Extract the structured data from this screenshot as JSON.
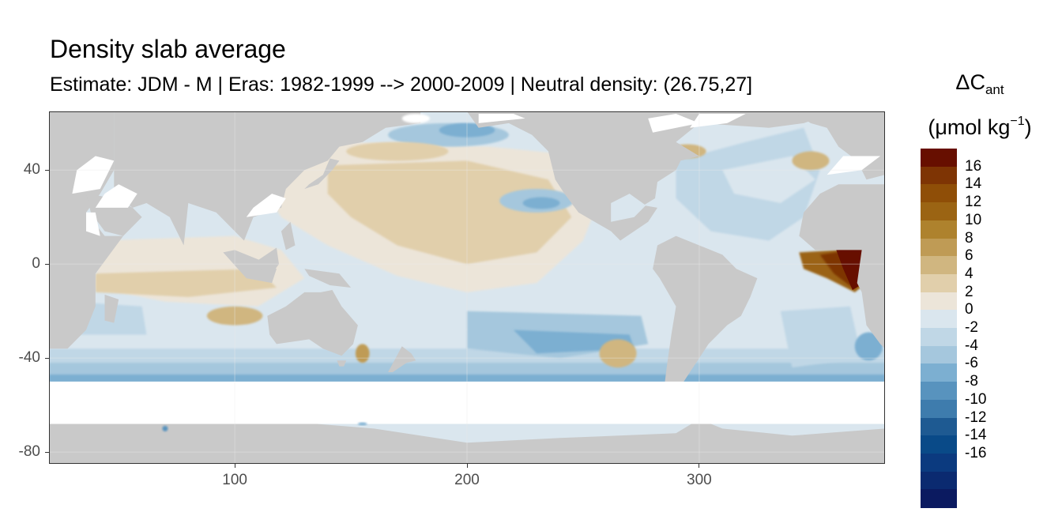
{
  "title": "Density slab average",
  "subtitle": "Estimate: JDM - M | Eras: 1982-1999 --> 2000-2009 | Neutral density: (26.75,27]",
  "legend": {
    "title_symbol": "ΔC",
    "title_subscript": "ant",
    "unit_prefix": "(μmol kg",
    "unit_exponent": "−1",
    "unit_suffix": ")",
    "labels": [
      "16",
      "14",
      "12",
      "10",
      "8",
      "6",
      "4",
      "2",
      "0",
      "-2",
      "-4",
      "-6",
      "-8",
      "-10",
      "-12",
      "-14",
      "-16"
    ],
    "colors": [
      "#670f00",
      "#7e3404",
      "#8f4e07",
      "#9b6413",
      "#ae822d",
      "#bf9b55",
      "#d0b680",
      "#e1cfab",
      "#ece5d9",
      "#dae6ee",
      "#c0d7e6",
      "#a5c7dd",
      "#7cafd1",
      "#5893be",
      "#3e7cad",
      "#1e5a92",
      "#094a88",
      "#0b3a7f",
      "#0b2a70",
      "#0b1a60"
    ]
  },
  "axes": {
    "x_ticks": [
      "100",
      "200",
      "300"
    ],
    "y_ticks": [
      "40",
      "0",
      "-40",
      "-80"
    ],
    "x_range": [
      20,
      380
    ],
    "y_range": [
      -85,
      65
    ],
    "grid": true
  },
  "map": {
    "land_color": "#c9c9c9",
    "ocean_base_color": "#dae6ee",
    "missing_data_color": "#ffffff",
    "projection": "longitude-latitude"
  }
}
